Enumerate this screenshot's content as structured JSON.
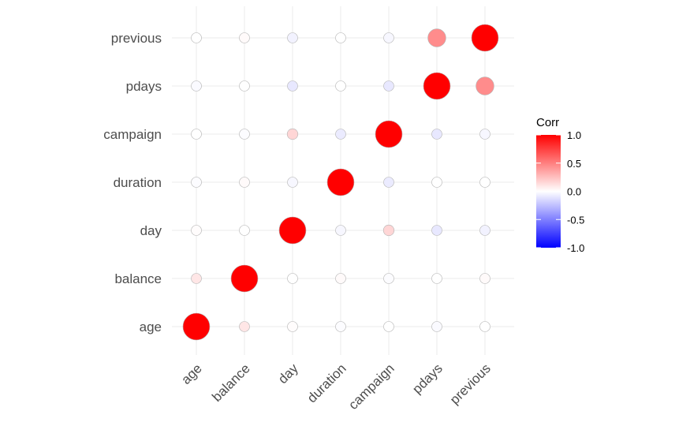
{
  "chart_data": {
    "type": "heatmap",
    "variables": [
      "age",
      "balance",
      "day",
      "duration",
      "campaign",
      "pdays",
      "previous"
    ],
    "matrix": [
      [
        1.0,
        0.1,
        0.01,
        -0.01,
        0.0,
        -0.02,
        0.0
      ],
      [
        0.1,
        1.0,
        0.0,
        0.02,
        -0.01,
        0.0,
        0.02
      ],
      [
        0.01,
        0.0,
        1.0,
        -0.03,
        0.16,
        -0.09,
        -0.05
      ],
      [
        -0.01,
        0.02,
        -0.03,
        1.0,
        -0.08,
        0.0,
        0.0
      ],
      [
        0.0,
        -0.01,
        0.16,
        -0.08,
        1.0,
        -0.09,
        -0.03
      ],
      [
        -0.02,
        0.0,
        -0.09,
        0.0,
        -0.09,
        1.0,
        0.45
      ],
      [
        0.0,
        0.02,
        -0.05,
        0.0,
        -0.03,
        0.45,
        1.0
      ]
    ],
    "legend": {
      "title": "Corr",
      "ticks": [
        "1.0",
        "0.5",
        "0.0",
        "-0.5",
        "-1.0"
      ],
      "range": [
        -1,
        1
      ],
      "colors": {
        "low": "#0000FF",
        "mid": "#FFFFFF",
        "high": "#FF0000"
      },
      "placement": "right"
    },
    "grid": true,
    "shape": "circle"
  }
}
